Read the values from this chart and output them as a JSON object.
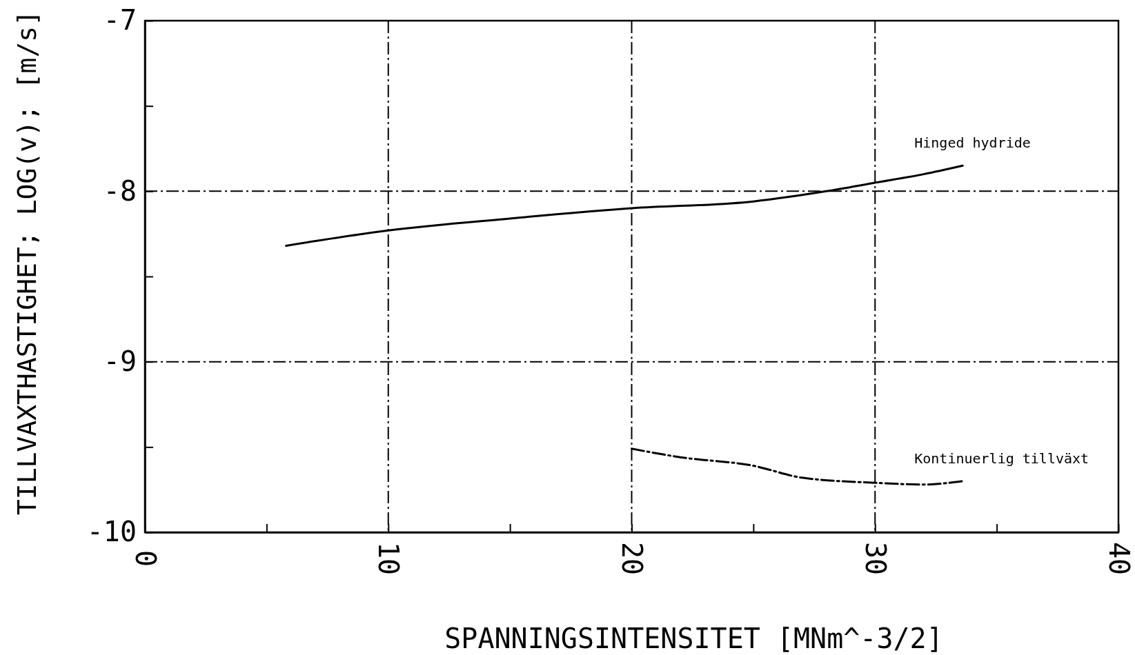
{
  "chart_data": {
    "type": "line",
    "xlabel": "SPANNINGSINTENSITET [MNm^-3/2]",
    "ylabel": "TILLVAXTHASTIGHET; LOG(v); [m/s]",
    "xlim": [
      0,
      40
    ],
    "ylim": [
      -10,
      -7
    ],
    "xticks": [
      0,
      {
        "value": 5,
        "label": null
      },
      10,
      {
        "value": 15,
        "label": null
      },
      20,
      {
        "value": 25,
        "label": null
      },
      30,
      {
        "value": 35,
        "label": null
      },
      40
    ],
    "yticks": [
      -10,
      {
        "value": -9.5,
        "label": null
      },
      -9,
      {
        "value": -8.5,
        "label": null
      },
      -8,
      {
        "value": -7.5,
        "label": null
      },
      -7
    ],
    "grid": true,
    "series": [
      {
        "name": "Hinged hydride",
        "color": "#000000",
        "line_style": "solid",
        "x": [
          5.8,
          10,
          15,
          20,
          25,
          28,
          30,
          32,
          33.6
        ],
        "values": [
          -8.32,
          -8.23,
          -8.16,
          -8.1,
          -8.06,
          -8.0,
          -7.95,
          -7.9,
          -7.85
        ]
      },
      {
        "name": "Kontinuerlig tillväxt",
        "color": "#000000",
        "line_style": "dashdot",
        "x": [
          20,
          22,
          25,
          27,
          30,
          32,
          33.6
        ],
        "values": [
          -9.51,
          -9.56,
          -9.61,
          -9.68,
          -9.71,
          -9.72,
          -9.7
        ]
      }
    ]
  }
}
